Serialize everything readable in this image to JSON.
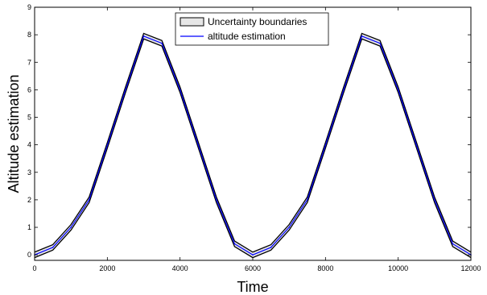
{
  "chart_data": {
    "type": "line",
    "xlabel": "Time",
    "ylabel": "Altitude estimation",
    "xlim": [
      0,
      12000
    ],
    "ylim": [
      -0.2,
      9
    ],
    "xticks": [
      0,
      2000,
      4000,
      6000,
      8000,
      10000,
      12000
    ],
    "yticks": [
      0,
      1,
      2,
      3,
      4,
      5,
      6,
      7,
      8,
      9
    ],
    "grid": false,
    "legend_position": "top-center",
    "legend": [
      {
        "label": "Uncertainty boundaries",
        "kind": "band"
      },
      {
        "label": "altitude estimation",
        "kind": "line"
      }
    ],
    "series": [
      {
        "name": "altitude estimation",
        "color": "#0000ff",
        "x": [
          0,
          500,
          1000,
          1500,
          2000,
          2500,
          3000,
          3500,
          4000,
          4500,
          5000,
          5500,
          6000,
          6500,
          7000,
          7500,
          8000,
          8500,
          9000,
          9500,
          10000,
          10500,
          11000,
          11500,
          12000
        ],
        "y": [
          0.0,
          0.27,
          1.0,
          2.0,
          3.98,
          6.0,
          7.95,
          7.69,
          6.0,
          4.0,
          2.0,
          0.4,
          0.0,
          0.27,
          1.0,
          2.0,
          3.98,
          6.0,
          7.95,
          7.69,
          6.0,
          4.0,
          2.0,
          0.4,
          0.0
        ]
      },
      {
        "name": "Uncertainty boundaries",
        "color": "#000000",
        "fill": "#e6e6e6",
        "x": [
          0,
          500,
          1000,
          1500,
          2000,
          2500,
          3000,
          3500,
          4000,
          4500,
          5000,
          5500,
          6000,
          6500,
          7000,
          7500,
          8000,
          8500,
          9000,
          9500,
          10000,
          10500,
          11000,
          11500,
          12000
        ],
        "lower": [
          -0.1,
          0.17,
          0.9,
          1.9,
          3.88,
          5.9,
          7.85,
          7.59,
          5.9,
          3.9,
          1.9,
          0.3,
          -0.1,
          0.17,
          0.9,
          1.9,
          3.88,
          5.9,
          7.85,
          7.59,
          5.9,
          3.9,
          1.9,
          0.3,
          -0.1
        ],
        "upper": [
          0.1,
          0.37,
          1.1,
          2.1,
          4.08,
          6.1,
          8.05,
          7.79,
          6.1,
          4.1,
          2.1,
          0.5,
          0.1,
          0.37,
          1.1,
          2.1,
          4.08,
          6.1,
          8.05,
          7.79,
          6.1,
          4.1,
          2.1,
          0.5,
          0.1
        ]
      }
    ]
  }
}
